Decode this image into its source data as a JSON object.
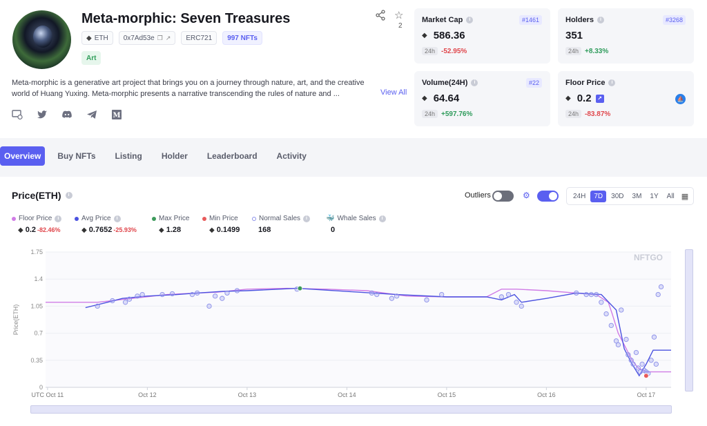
{
  "collection": {
    "name": "Meta-morphic: Seven Treasures",
    "chain": "ETH",
    "address": "0x7Ad53e",
    "standard": "ERC721",
    "nfts": "997 NFTs",
    "category": "Art",
    "star_count": "2",
    "description": "Meta-morphic is a generative art project that brings you on a journey through nature, art, and the creative world of Huang Yuxing. Meta-morphic presents a narrative transcending the rules of nature and ...",
    "view_all": "View All",
    "socials": [
      "website-icon",
      "twitter-icon",
      "discord-icon",
      "telegram-icon",
      "medium-icon"
    ]
  },
  "stats": {
    "market_cap": {
      "label": "Market Cap",
      "rank": "#1461",
      "value": "586.36",
      "period": "24h",
      "change": "-52.95%"
    },
    "holders": {
      "label": "Holders",
      "rank": "#3268",
      "value": "351",
      "period": "24h",
      "change": "+8.33%"
    },
    "volume": {
      "label": "Volume(24H)",
      "rank": "#22",
      "value": "64.64",
      "period": "24h",
      "change": "+597.76%"
    },
    "floor": {
      "label": "Floor Price",
      "value": "0.2",
      "period": "24h",
      "change": "-83.87%"
    }
  },
  "tabs": [
    "Overview",
    "Buy NFTs",
    "Listing",
    "Holder",
    "Leaderboard",
    "Activity"
  ],
  "active_tab": "Overview",
  "price_panel": {
    "title": "Price(ETH)",
    "outliers_label": "Outliers",
    "ranges": [
      "24H",
      "7D",
      "30D",
      "3M",
      "1Y",
      "All"
    ],
    "active_range": "7D",
    "legend": {
      "floor": {
        "label": "Floor Price",
        "value": "0.2",
        "change": "-82.46%",
        "color": "#d07ce6"
      },
      "avg": {
        "label": "Avg Price",
        "value": "0.7652",
        "change": "-25.93%",
        "color": "#4b52e0"
      },
      "max": {
        "label": "Max Price",
        "value": "1.28",
        "color": "#3d9a5b"
      },
      "min": {
        "label": "Min Price",
        "value": "0.1499",
        "color": "#e85b5b"
      },
      "normal": {
        "label": "Normal Sales",
        "value": "168"
      },
      "whale": {
        "label": "Whale Sales",
        "value": "0"
      }
    }
  },
  "chart_data": {
    "type": "line",
    "ylabel": "Price(ETH)",
    "ylim": [
      0,
      1.75
    ],
    "y_ticks": [
      "0",
      "0.35",
      "0.7",
      "1.05",
      "1.4",
      "1.75"
    ],
    "x_ticks": [
      "UTC Oct 11",
      "Oct 12",
      "Oct 13",
      "Oct 14",
      "Oct 15",
      "Oct 16",
      "Oct 17"
    ],
    "xlim": [
      10.98,
      17.25
    ],
    "watermark": "NFTGO",
    "series": [
      {
        "name": "Floor Price",
        "color": "#d07ce6",
        "x": [
          10.98,
          11.5,
          11.85,
          12.2,
          12.5,
          12.7,
          13.0,
          13.4,
          13.8,
          14.2,
          14.6,
          15.0,
          15.4,
          15.55,
          15.7,
          16.0,
          16.3,
          16.5,
          16.62,
          16.66,
          16.72,
          16.8,
          16.86,
          16.92,
          17.0,
          17.1,
          17.25
        ],
        "y": [
          1.1,
          1.1,
          1.15,
          1.2,
          1.22,
          1.23,
          1.27,
          1.28,
          1.27,
          1.25,
          1.18,
          1.17,
          1.17,
          1.27,
          1.27,
          1.25,
          1.22,
          1.2,
          1.1,
          0.95,
          0.7,
          0.5,
          0.35,
          0.25,
          0.2,
          0.2,
          0.2
        ]
      },
      {
        "name": "Avg Price",
        "color": "#4b52e0",
        "x": [
          11.38,
          11.6,
          11.75,
          12.0,
          12.3,
          12.5,
          12.75,
          13.0,
          13.5,
          14.0,
          14.5,
          15.0,
          15.4,
          15.55,
          15.68,
          15.75,
          16.0,
          16.3,
          16.55,
          16.7,
          16.78,
          16.86,
          16.93,
          17.0,
          17.07,
          17.25
        ],
        "y": [
          1.03,
          1.1,
          1.15,
          1.18,
          1.2,
          1.22,
          1.24,
          1.25,
          1.28,
          1.24,
          1.2,
          1.17,
          1.17,
          1.13,
          1.2,
          1.1,
          1.15,
          1.22,
          1.2,
          1.0,
          0.5,
          0.3,
          0.15,
          0.3,
          0.48,
          0.48
        ]
      },
      {
        "name": "Normal Sales",
        "color": "#8a8fe8",
        "x": [
          11.5,
          11.65,
          11.78,
          11.82,
          11.9,
          11.95,
          12.15,
          12.25,
          12.45,
          12.5,
          12.62,
          12.68,
          12.75,
          12.8,
          12.9,
          13.5,
          14.25,
          14.3,
          14.45,
          14.5,
          14.8,
          14.95,
          15.55,
          15.62,
          15.7,
          15.75,
          16.3,
          16.4,
          16.45,
          16.5,
          16.55,
          16.6,
          16.65,
          16.7,
          16.72,
          16.75,
          16.8,
          16.82,
          16.85,
          16.87,
          16.9,
          16.92,
          16.94,
          16.96,
          16.98,
          17.0,
          17.02,
          17.05,
          17.08,
          17.1,
          17.12,
          17.15
        ],
        "y": [
          1.05,
          1.12,
          1.1,
          1.14,
          1.18,
          1.2,
          1.2,
          1.21,
          1.2,
          1.22,
          1.05,
          1.18,
          1.15,
          1.22,
          1.25,
          1.27,
          1.22,
          1.2,
          1.15,
          1.18,
          1.13,
          1.2,
          1.17,
          1.2,
          1.1,
          1.05,
          1.22,
          1.2,
          1.2,
          1.2,
          1.1,
          0.95,
          0.8,
          0.6,
          0.55,
          1.0,
          0.62,
          0.42,
          0.35,
          0.3,
          0.45,
          0.25,
          0.2,
          0.3,
          0.22,
          0.2,
          0.18,
          0.35,
          0.65,
          0.3,
          1.2,
          1.3
        ]
      },
      {
        "name": "Max Price",
        "color": "#3d9a5b",
        "x": [
          13.53
        ],
        "y": [
          1.28
        ]
      },
      {
        "name": "Min Price",
        "color": "#e85b5b",
        "x": [
          17.0
        ],
        "y": [
          0.15
        ]
      }
    ]
  }
}
